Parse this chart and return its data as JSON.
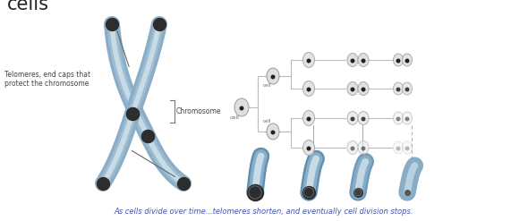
{
  "title": "cells",
  "bg_color": "#ffffff",
  "annotation_telomere": "Telomeres, end caps that\nprotect the chromosome",
  "annotation_chromosome": "Chromosome",
  "label_cell0": "cell",
  "label_cell1": "cell",
  "label_cell2": "cell",
  "bottom_text": "As cells divide over time...telomeres shorten, and eventually cell division stops.",
  "telomere_dark": "#2d2d2d",
  "chrom_blue": "#8aaec8",
  "chrom_light": "#c8dce8",
  "chrom_mid": "#a0bdd0",
  "cell_outline": "#aaaaaa",
  "cell_fill": "#e8e8e8",
  "cell_nucleus": "#222222",
  "tree_line": "#aaaaaa",
  "bottom_text_color": "#4455aa",
  "arrow_color": "#666666"
}
